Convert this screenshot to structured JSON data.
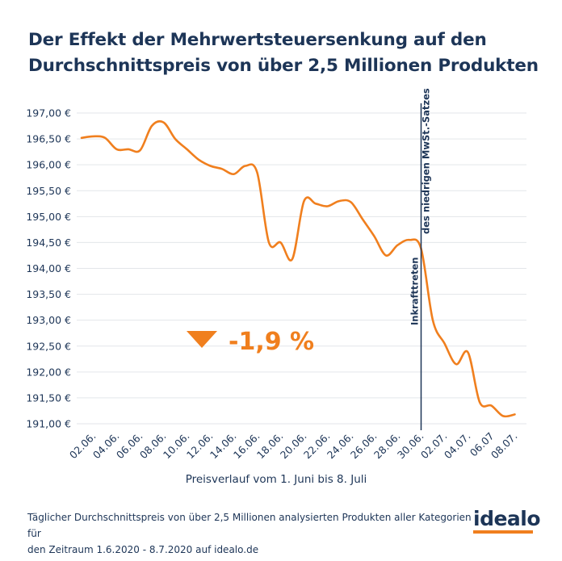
{
  "title_line1": "Der Effekt der Mehrwertsteuersenkung auf den",
  "title_line2": "Durchschnittspreis von über 2,5 Millionen Produkten",
  "footnote_line1": "Täglicher Durchschnittspreis von über 2,5 Millionen analysierten Produkten aller Kategorien für",
  "footnote_line2": "den Zeitraum 1.6.2020 - 8.7.2020 auf idealo.de",
  "logo_text": "idealo",
  "colors": {
    "line": "#f07f1e",
    "text": "#1d3557",
    "grid": "#e3e6ea",
    "marker": "#1d3557",
    "logo_accent": "#f07f1e"
  },
  "chart_data": {
    "type": "line",
    "title": "Der Effekt der Mehrwertsteuersenkung auf den Durchschnittspreis von über 2,5 Millionen Produkten",
    "xlabel": "Preisverlauf vom 1. Juni bis 8. Juli",
    "ylabel": "",
    "ylim": [
      190.9,
      197.2
    ],
    "grid": "horizontal",
    "y_ticks": [
      197.0,
      196.5,
      196.0,
      195.5,
      195.0,
      194.5,
      194.0,
      193.5,
      193.0,
      192.5,
      192.0,
      191.5,
      191.0
    ],
    "y_tick_labels": [
      "197,00 €",
      "196,50 €",
      "196,00 €",
      "195,50 €",
      "195,00 €",
      "194,50 €",
      "194,00 €",
      "193,50 €",
      "193,00 €",
      "192,50 €",
      "192,00 €",
      "191,50 €",
      "191,00 €"
    ],
    "x_tick_labels": [
      "02.06.",
      "04.06.",
      "06.06.",
      "08.06.",
      "10.06.",
      "12.06.",
      "14.06.",
      "16.06.",
      "18.06.",
      "20.06.",
      "22.06.",
      "24.06.",
      "26.06.",
      "28.06.",
      "30.06.",
      "02.07.",
      "04.07.",
      "06.07",
      "08.07."
    ],
    "x": [
      "01.06.",
      "02.06.",
      "03.06.",
      "04.06.",
      "05.06.",
      "06.06.",
      "07.06.",
      "08.06.",
      "09.06.",
      "10.06.",
      "11.06.",
      "12.06.",
      "13.06.",
      "14.06.",
      "15.06.",
      "16.06.",
      "17.06.",
      "18.06.",
      "19.06.",
      "20.06.",
      "21.06.",
      "22.06.",
      "23.06.",
      "24.06.",
      "25.06.",
      "26.06.",
      "27.06.",
      "28.06.",
      "29.06.",
      "30.06.",
      "01.07.",
      "02.07.",
      "03.07.",
      "04.07.",
      "05.07.",
      "06.07.",
      "07.07.",
      "08.07."
    ],
    "series": [
      {
        "values": [
          196.52,
          196.55,
          196.52,
          196.3,
          196.3,
          196.28,
          196.75,
          196.82,
          196.5,
          196.3,
          196.1,
          195.98,
          195.92,
          195.82,
          195.98,
          195.85,
          194.5,
          194.5,
          194.18,
          195.3,
          195.25,
          195.2,
          195.3,
          195.28,
          194.95,
          194.62,
          194.25,
          194.45,
          194.55,
          194.38,
          193.0,
          192.55,
          192.15,
          192.38,
          191.42,
          191.35,
          191.15,
          191.18
        ]
      }
    ],
    "annotations": {
      "vline_at": "30.06.",
      "vline_label_line1": "Inkrafttreten",
      "vline_label_line2": "des niedrigen MwSt.-Satzes",
      "change_label": "-1,9 %"
    }
  }
}
